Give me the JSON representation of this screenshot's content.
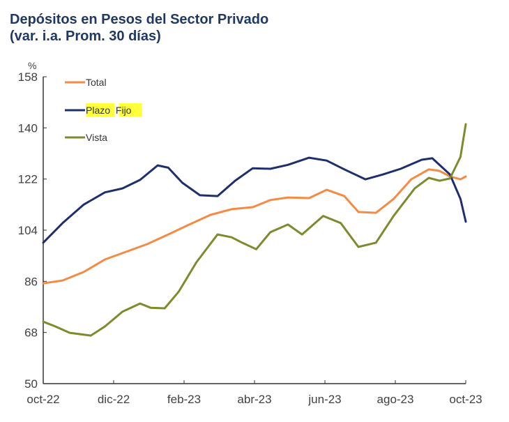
{
  "chart_data": {
    "type": "line",
    "title": "Depósitos en Pesos del Sector Privado",
    "subtitle": "(var. i.a. Prom. 30 días)",
    "xlabel": "",
    "ylabel": "%",
    "ylim": [
      50,
      158
    ],
    "yticks": [
      50,
      68,
      86,
      104,
      122,
      140,
      158
    ],
    "xlim": [
      0,
      12
    ],
    "xticks": [
      {
        "pos": 0,
        "label": "oct-22"
      },
      {
        "pos": 2,
        "label": "dic-22"
      },
      {
        "pos": 4,
        "label": "feb-23"
      },
      {
        "pos": 6,
        "label": "abr-23"
      },
      {
        "pos": 8,
        "label": "jun-23"
      },
      {
        "pos": 10,
        "label": "ago-23"
      },
      {
        "pos": 12,
        "label": "oct-23"
      }
    ],
    "grid": false,
    "legend": {
      "placement": "top-left"
    },
    "series": [
      {
        "name": "Total",
        "color": "#f58b43",
        "highlight": false,
        "x": [
          0,
          0.55,
          1.15,
          1.75,
          2.35,
          2.95,
          3.55,
          4.15,
          4.75,
          5.35,
          5.95,
          6.45,
          6.95,
          7.55,
          8.05,
          8.55,
          8.95,
          9.45,
          9.95,
          10.45,
          10.95,
          11.25,
          11.55,
          11.85,
          12.0
        ],
        "values": [
          85.3,
          86.3,
          89.3,
          93.7,
          96.4,
          99.1,
          102.5,
          106.0,
          109.4,
          111.4,
          112.1,
          114.6,
          115.5,
          115.3,
          118.2,
          116.0,
          110.4,
          110.1,
          115.0,
          121.9,
          125.4,
          124.9,
          122.9,
          121.9,
          122.9
        ]
      },
      {
        "name": "Plazo Fijo",
        "color": "#1f2f6e",
        "highlight": true,
        "x": [
          0,
          0.55,
          1.15,
          1.75,
          2.25,
          2.75,
          3.25,
          3.55,
          3.95,
          4.45,
          4.95,
          5.45,
          5.95,
          6.45,
          6.95,
          7.55,
          8.05,
          8.55,
          9.15,
          9.65,
          10.15,
          10.75,
          11.05,
          11.55,
          11.85,
          12.0
        ],
        "values": [
          99.6,
          106.5,
          113.0,
          117.3,
          118.7,
          121.7,
          126.8,
          126.0,
          120.7,
          116.3,
          116.0,
          121.4,
          125.8,
          125.6,
          127.0,
          129.5,
          128.5,
          125.4,
          121.9,
          123.6,
          125.6,
          128.8,
          129.3,
          123.6,
          115.0,
          107.0
        ]
      },
      {
        "name": "Vista",
        "color": "#7a8c2e",
        "highlight": false,
        "x": [
          0,
          0.35,
          0.75,
          1.35,
          1.75,
          2.25,
          2.75,
          3.05,
          3.45,
          3.85,
          4.35,
          4.95,
          5.35,
          5.65,
          6.05,
          6.45,
          6.95,
          7.35,
          7.95,
          8.45,
          8.95,
          9.45,
          9.95,
          10.55,
          10.95,
          11.25,
          11.55,
          11.85,
          12.0
        ],
        "values": [
          71.8,
          70.1,
          67.9,
          66.9,
          70.1,
          75.3,
          78.2,
          76.7,
          76.5,
          82.4,
          92.7,
          102.5,
          101.5,
          99.6,
          97.3,
          103.3,
          106.0,
          102.5,
          109.0,
          106.5,
          98.1,
          99.6,
          109.0,
          118.7,
          122.4,
          121.4,
          122.2,
          129.8,
          141.3
        ]
      }
    ]
  }
}
